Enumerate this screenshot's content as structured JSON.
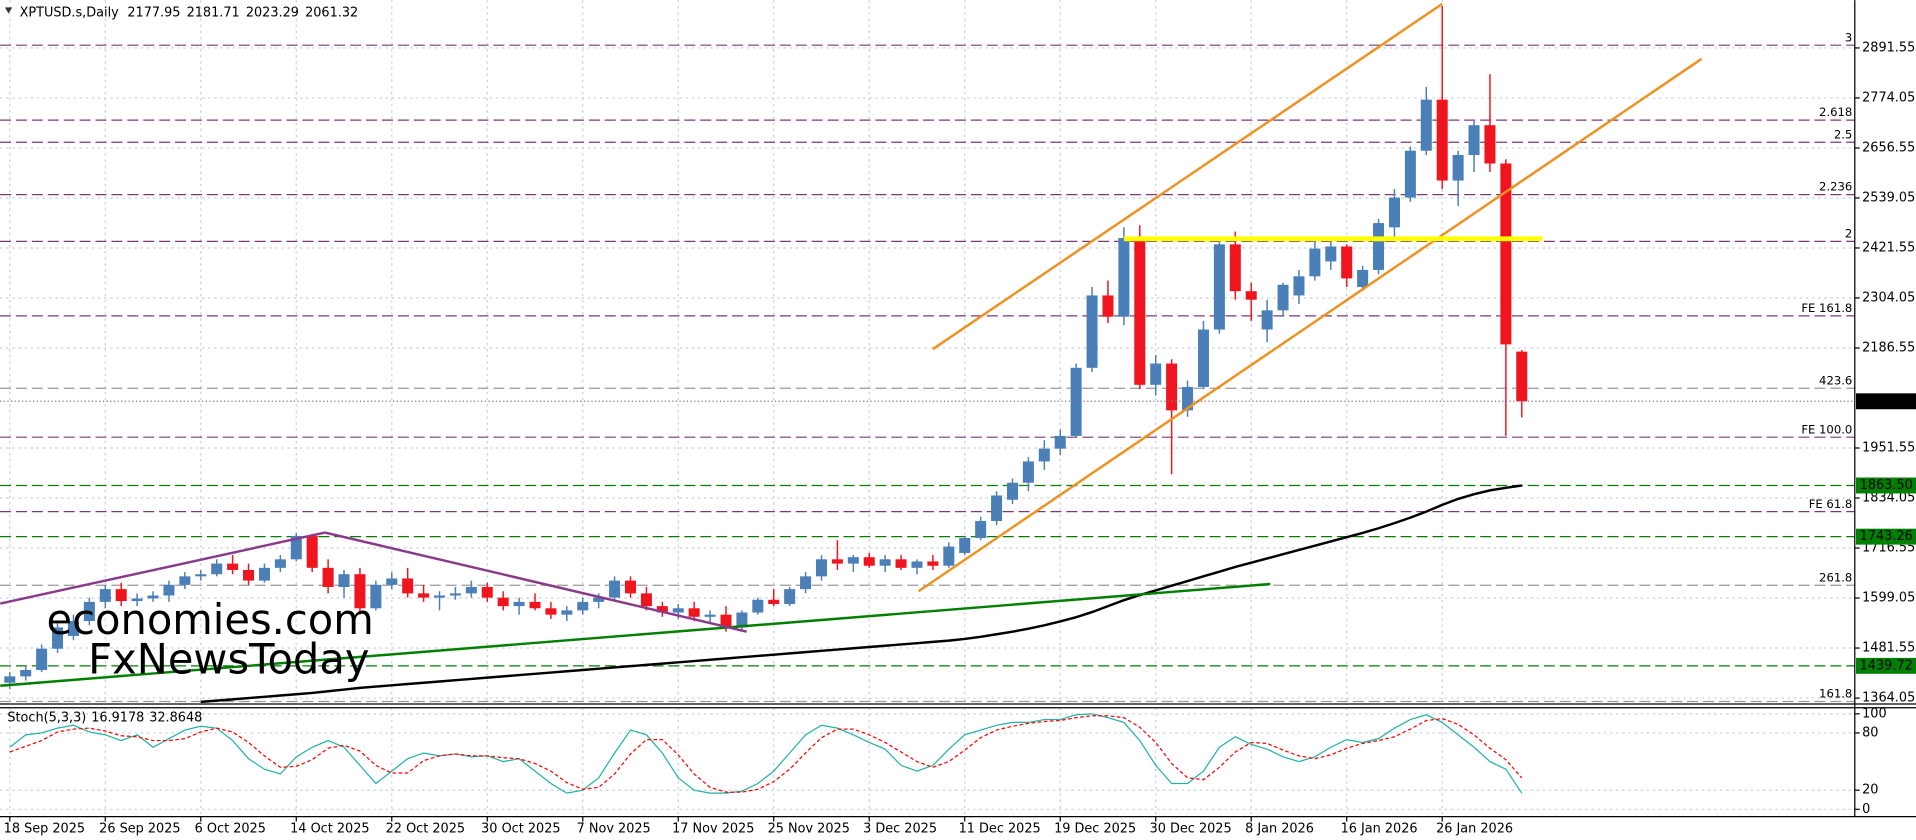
{
  "chart_data": [
    {
      "type": "candlestick",
      "title": "XPTUSD.s,Daily",
      "categories": [
        "18 Sep 2025",
        null,
        null,
        null,
        null,
        null,
        "26 Sep 2025",
        null,
        null,
        null,
        null,
        null,
        "6 Oct 2025",
        null,
        null,
        null,
        null,
        null,
        "14 Oct 2025",
        null,
        null,
        null,
        null,
        null,
        "22 Oct 2025",
        null,
        null,
        null,
        null,
        null,
        "30 Oct 2025",
        null,
        null,
        null,
        null,
        null,
        "7 Nov 2025",
        null,
        null,
        null,
        null,
        null,
        "17 Nov 2025",
        null,
        null,
        null,
        null,
        null,
        "25 Nov 2025",
        null,
        null,
        null,
        null,
        null,
        "3 Dec 2025",
        null,
        null,
        null,
        null,
        null,
        "11 Dec 2025",
        null,
        null,
        null,
        null,
        null,
        "19 Dec 2025",
        null,
        null,
        null,
        null,
        null,
        "30 Dec 2025",
        null,
        null,
        null,
        null,
        null,
        "8 Jan 2026",
        null,
        null,
        null,
        null,
        null,
        "16 Jan 2026",
        null,
        null,
        null,
        null,
        null,
        "26 Jan 2026",
        null,
        null,
        null,
        null,
        null
      ],
      "open": [
        1400,
        1415,
        1430,
        1480,
        1510,
        1545,
        1590,
        1620,
        1592,
        1598,
        1605,
        1630,
        1650,
        1655,
        1680,
        1665,
        1640,
        1670,
        1690,
        1745,
        1670,
        1625,
        1655,
        1575,
        1630,
        1645,
        1610,
        1600,
        1605,
        1610,
        1625,
        1600,
        1580,
        1590,
        1575,
        1560,
        1570,
        1590,
        1600,
        1640,
        1610,
        1580,
        1565,
        1575,
        1555,
        1560,
        1530,
        1565,
        1595,
        1585,
        1620,
        1650,
        1690,
        1680,
        1695,
        1675,
        1690,
        1670,
        1685,
        1675,
        1705,
        1740,
        1780,
        1830,
        1870,
        1920,
        1950,
        1980,
        2140,
        2310,
        2260,
        2445,
        2100,
        2150,
        2040,
        2095,
        2230,
        2430,
        2320,
        2230,
        2275,
        2310,
        2355,
        2390,
        2425,
        2330,
        2370,
        2470,
        2540,
        2650,
        2770,
        2580,
        2640,
        2710,
        2620,
        2177.95
      ],
      "high": [
        1425,
        1440,
        1490,
        1540,
        1560,
        1600,
        1630,
        1635,
        1610,
        1615,
        1640,
        1660,
        1665,
        1690,
        1700,
        1680,
        1680,
        1700,
        1752,
        1750,
        1690,
        1665,
        1670,
        1640,
        1660,
        1670,
        1630,
        1615,
        1625,
        1640,
        1635,
        1615,
        1600,
        1610,
        1590,
        1580,
        1600,
        1610,
        1650,
        1650,
        1625,
        1590,
        1585,
        1590,
        1570,
        1580,
        1570,
        1600,
        1620,
        1625,
        1660,
        1700,
        1735,
        1700,
        1705,
        1700,
        1700,
        1690,
        1700,
        1730,
        1745,
        1790,
        1850,
        1880,
        1930,
        1970,
        1995,
        2150,
        2330,
        2345,
        2470,
        2475,
        2170,
        2160,
        2110,
        2250,
        2440,
        2460,
        2340,
        2300,
        2340,
        2370,
        2440,
        2440,
        2430,
        2380,
        2490,
        2560,
        2660,
        2800,
        2990,
        2650,
        2720,
        2830,
        2630,
        2181.71
      ],
      "low": [
        1385,
        1405,
        1425,
        1470,
        1500,
        1535,
        1575,
        1580,
        1580,
        1590,
        1590,
        1620,
        1640,
        1650,
        1655,
        1630,
        1635,
        1660,
        1685,
        1660,
        1610,
        1600,
        1560,
        1570,
        1620,
        1600,
        1590,
        1570,
        1595,
        1600,
        1590,
        1570,
        1560,
        1570,
        1550,
        1545,
        1560,
        1575,
        1595,
        1600,
        1570,
        1555,
        1550,
        1545,
        1540,
        1520,
        1525,
        1560,
        1580,
        1580,
        1610,
        1640,
        1665,
        1660,
        1670,
        1660,
        1665,
        1655,
        1665,
        1670,
        1700,
        1735,
        1770,
        1820,
        1850,
        1900,
        1935,
        1975,
        2130,
        2245,
        2240,
        2090,
        2075,
        1890,
        2025,
        2090,
        2220,
        2300,
        2250,
        2200,
        2260,
        2290,
        2345,
        2370,
        2330,
        2320,
        2360,
        2440,
        2530,
        2640,
        2560,
        2520,
        2600,
        2600,
        1980,
        2023.29
      ],
      "close": [
        1415,
        1430,
        1480,
        1530,
        1545,
        1590,
        1620,
        1592,
        1598,
        1605,
        1630,
        1650,
        1655,
        1680,
        1665,
        1640,
        1670,
        1690,
        1745,
        1670,
        1625,
        1655,
        1575,
        1630,
        1645,
        1610,
        1600,
        1605,
        1610,
        1625,
        1600,
        1580,
        1590,
        1575,
        1560,
        1570,
        1590,
        1600,
        1640,
        1610,
        1580,
        1565,
        1575,
        1555,
        1560,
        1530,
        1565,
        1595,
        1585,
        1620,
        1650,
        1690,
        1680,
        1695,
        1675,
        1690,
        1670,
        1685,
        1675,
        1720,
        1740,
        1780,
        1840,
        1870,
        1920,
        1950,
        1980,
        2140,
        2310,
        2260,
        2445,
        2100,
        2150,
        2040,
        2095,
        2230,
        2430,
        2320,
        2300,
        2275,
        2335,
        2355,
        2420,
        2425,
        2350,
        2370,
        2480,
        2540,
        2650,
        2770,
        2580,
        2640,
        2710,
        2620,
        2195,
        2061.32
      ],
      "up_color": "#4a7fb7",
      "down_color": "#f0141e",
      "ylim": [
        1350,
        3004
      ],
      "yticks": [
        2891.55,
        2774.05,
        2656.55,
        2539.05,
        2421.55,
        2304.05,
        2186.55,
        1951.55,
        1834.05,
        1716.55,
        1599.05,
        1481.55,
        1364.05
      ],
      "grid": true,
      "overlays": [
        {
          "type": "line",
          "color": "#000000",
          "values": [
            null,
            null,
            null,
            null,
            null,
            null,
            null,
            null,
            null,
            null,
            null,
            null,
            1355,
            1358,
            1361,
            1364,
            1367,
            1370,
            1373,
            1376,
            1380,
            1384,
            1388,
            1391,
            1394,
            1397,
            1400,
            1403,
            1406,
            1409,
            1412,
            1415,
            1418,
            1421,
            1424,
            1427,
            1430,
            1433,
            1436,
            1439,
            1442,
            1445,
            1448,
            1451,
            1454,
            1457,
            1460,
            1463,
            1466,
            1469,
            1472,
            1475,
            1478,
            1481,
            1484,
            1487,
            1490,
            1493,
            1496,
            1499,
            1503,
            1508,
            1514,
            1520,
            1527,
            1535,
            1544,
            1554,
            1566,
            1580,
            1594,
            1606,
            1617,
            1628,
            1639,
            1650,
            1661,
            1672,
            1682,
            1692,
            1702,
            1712,
            1722,
            1732,
            1742,
            1752,
            1763,
            1775,
            1788,
            1802,
            1818,
            1832,
            1843,
            1852,
            1858,
            1863.5
          ]
        }
      ],
      "levels": [
        {
          "label": "3",
          "value": 2898,
          "color": "#7a3a7a"
        },
        {
          "label": "2.618",
          "value": 2722,
          "color": "#7a3a7a"
        },
        {
          "label": "2.5",
          "value": 2670,
          "color": "#7a3a7a"
        },
        {
          "label": "2.236",
          "value": 2547,
          "color": "#7a3a7a"
        },
        {
          "label": "2",
          "value": 2437,
          "color": "#7a3a7a"
        },
        {
          "label": "FE 161.8",
          "value": 2262,
          "color": "#7a3a7a"
        },
        {
          "label": "423.6",
          "value": 2092,
          "color": "#9a9a9a"
        },
        {
          "label": "FE 100.0",
          "value": 1977,
          "color": "#7a3a7a"
        },
        {
          "label": "FE 61.8",
          "value": 1802,
          "color": "#7a3a7a"
        },
        {
          "label": "261.8",
          "value": 1629,
          "color": "#9a9a9a"
        },
        {
          "label": "161.8",
          "value": 1356,
          "color": "#9a9a9a"
        }
      ],
      "price_levels": [
        {
          "value": 1863.5,
          "label": "1863.50"
        },
        1743.26,
        1439.72
      ],
      "price_level_color": "#008000",
      "trendlines": [
        {
          "color": "#f0901e",
          "points": [
            [
              58,
              2184
            ],
            [
              90,
              2995
            ]
          ]
        },
        {
          "color": "#f0901e",
          "points": [
            [
              57.1,
              1615
            ],
            [
              106.3,
              2866
            ]
          ]
        },
        {
          "color": "#008000",
          "points": [
            [
              -0.6,
              1393
            ],
            [
              79.2,
              1632
            ]
          ]
        },
        {
          "color": "#8b3a8b",
          "points": [
            [
              -0.6,
              1586
            ],
            [
              19.8,
              1753
            ]
          ]
        },
        {
          "color": "#8b3a8b",
          "points": [
            [
              19.8,
              1753
            ],
            [
              46.3,
              1520
            ]
          ]
        },
        {
          "color": "#ffff00",
          "points": [
            [
              70,
              2443
            ],
            [
              96.3,
              2443
            ]
          ]
        }
      ],
      "watermark": [
        "economies.com",
        "FxNewsToday"
      ]
    },
    {
      "type": "line",
      "title": "Stoch(5,3,3)",
      "ylim": [
        0,
        100
      ],
      "yticks": [
        100,
        80,
        20,
        0
      ],
      "grid": true,
      "series": [
        {
          "color": "#20b2aa",
          "line_style": "solid",
          "values": [
            65,
            78,
            80,
            85,
            88,
            81,
            78,
            72,
            78,
            65,
            74,
            83,
            87,
            85,
            72,
            53,
            42,
            37,
            55,
            65,
            72,
            65,
            46,
            27,
            40,
            53,
            59,
            56,
            58,
            55,
            56,
            50,
            53,
            40,
            27,
            17,
            20,
            33,
            59,
            83,
            78,
            59,
            33,
            20,
            17,
            17,
            19,
            27,
            40,
            59,
            78,
            88,
            85,
            78,
            70,
            63,
            46,
            40,
            46,
            63,
            78,
            83,
            88,
            91,
            91,
            94,
            94,
            99,
            100,
            96,
            91,
            72,
            46,
            27,
            27,
            40,
            65,
            76,
            68,
            63,
            55,
            50,
            55,
            65,
            73,
            70,
            74,
            85,
            94,
            99,
            91,
            78,
            65,
            50,
            42,
            16.9178
          ]
        },
        {
          "color": "#ff0000",
          "line_style": "dashed",
          "values": [
            60,
            66,
            72,
            81,
            84,
            85,
            82,
            77,
            76,
            72,
            72,
            74,
            81,
            85,
            81,
            70,
            56,
            44,
            45,
            52,
            64,
            67,
            61,
            46,
            38,
            38,
            51,
            56,
            58,
            56,
            56,
            54,
            53,
            48,
            40,
            28,
            21,
            23,
            37,
            58,
            73,
            73,
            57,
            37,
            23,
            18,
            18,
            21,
            29,
            42,
            59,
            75,
            84,
            84,
            78,
            70,
            60,
            50,
            44,
            50,
            62,
            75,
            83,
            87,
            90,
            92,
            93,
            96,
            98,
            98,
            96,
            86,
            70,
            48,
            33,
            31,
            44,
            60,
            70,
            69,
            62,
            56,
            53,
            57,
            64,
            69,
            72,
            76,
            84,
            93,
            95,
            89,
            78,
            64,
            52,
            32.8648
          ]
        }
      ]
    }
  ]
}
